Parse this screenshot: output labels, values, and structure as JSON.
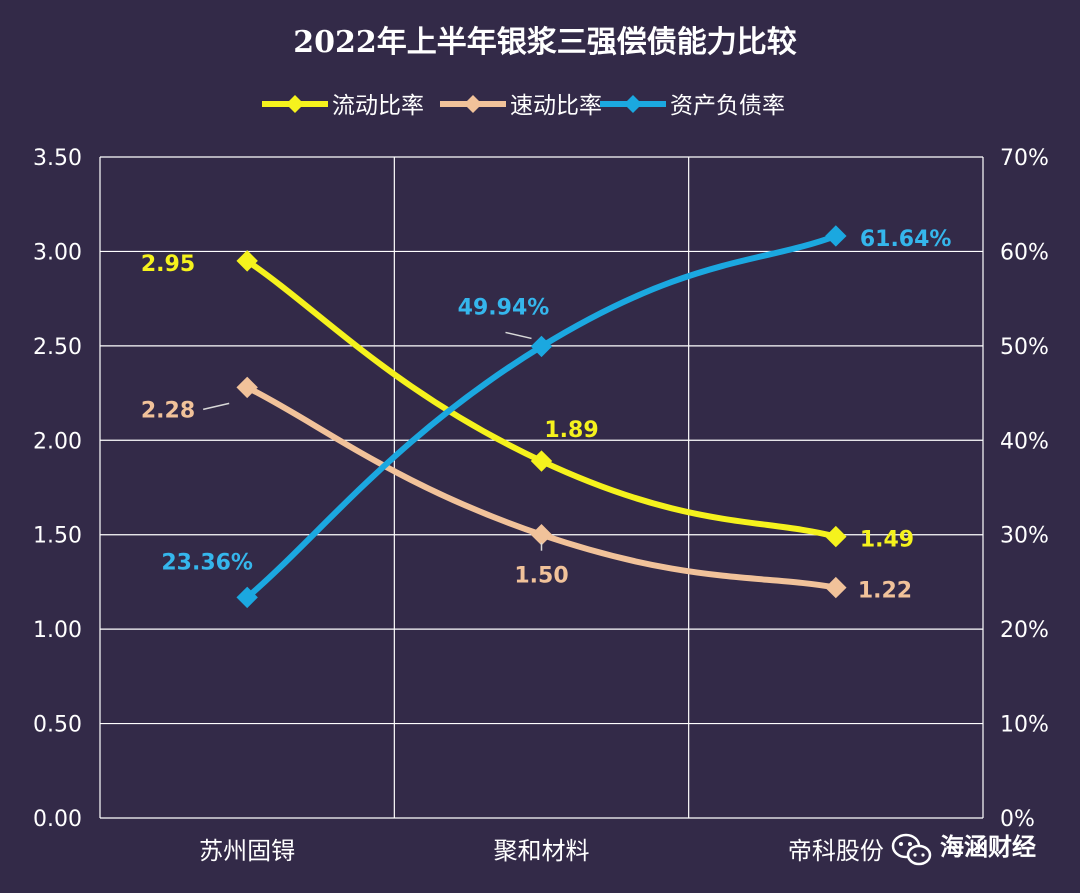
{
  "chart_data": {
    "type": "line",
    "title": "2022年上半年银浆三强偿债能力比较",
    "categories": [
      "苏州固锝",
      "聚和材料",
      "帝科股份"
    ],
    "y_left": {
      "range": [
        0,
        3.5
      ],
      "ticks": [
        "0.00",
        "0.50",
        "1.00",
        "1.50",
        "2.00",
        "2.50",
        "3.00",
        "3.50"
      ]
    },
    "y_right": {
      "range": [
        0,
        70
      ],
      "ticks": [
        "0%",
        "10%",
        "20%",
        "30%",
        "40%",
        "50%",
        "60%",
        "70%"
      ]
    },
    "grid": true,
    "legend_position": "top",
    "series": [
      {
        "name": "流动比率",
        "axis": "left",
        "color": "#f5f21d",
        "label_color": "#f5f21d",
        "values": [
          2.95,
          1.89,
          1.49
        ],
        "labels": [
          "2.95",
          "1.89",
          "1.49"
        ]
      },
      {
        "name": "速动比率",
        "axis": "left",
        "color": "#f1c29a",
        "label_color": "#f1c29a",
        "values": [
          2.28,
          1.5,
          1.22
        ],
        "labels": [
          "2.28",
          "1.50",
          "1.22"
        ]
      },
      {
        "name": "资产负债率",
        "axis": "right",
        "color": "#1ba8e0",
        "label_color": "#35b6ec",
        "values": [
          23.36,
          49.94,
          61.64
        ],
        "labels": [
          "23.36%",
          "49.94%",
          "61.64%"
        ]
      }
    ]
  },
  "watermark": {
    "text": "海涵财经",
    "icon": "wechat-icon"
  }
}
